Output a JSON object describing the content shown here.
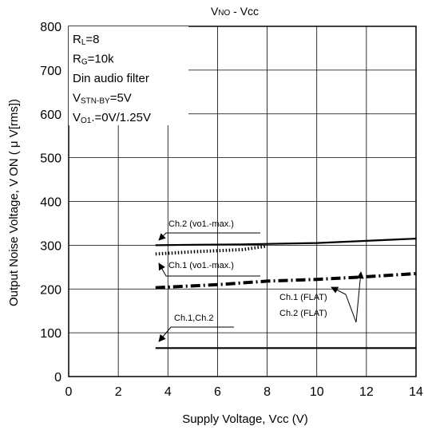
{
  "chart_data": {
    "type": "line",
    "title": {
      "main": "V",
      "sub": "NO",
      "rest": " - Vcc"
    },
    "xlabel": "Supply Voltage, Vcc (V)",
    "ylabel": "Output Noise Voltage, V ON ( μ V[rms])",
    "xlim": [
      0,
      14
    ],
    "ylim": [
      0,
      800
    ],
    "xticks": [
      "0",
      "2",
      "4",
      "6",
      "8",
      "10",
      "12",
      "14"
    ],
    "yticks": [
      "0",
      "100",
      "200",
      "300",
      "400",
      "500",
      "600",
      "700",
      "800"
    ],
    "grid": true,
    "conditions": [
      {
        "main": "R",
        "sub": "L",
        "rest": "=8"
      },
      {
        "main": "R",
        "sub": "G",
        "rest": "=10k"
      },
      {
        "main": "Din audio filter",
        "sub": "",
        "rest": ""
      },
      {
        "main": "V",
        "sub": "STN-BY",
        "rest": "=5V"
      },
      {
        "main": "V",
        "sub": "O1",
        "rest": ".=0V/1.25V"
      }
    ],
    "series": [
      {
        "name": "Ch.2 (vo1.-max.)",
        "style": "solid",
        "color": "#000000",
        "x": [
          3.5,
          5,
          7,
          8,
          10,
          12,
          14
        ],
        "y": [
          300,
          301,
          302,
          303,
          305,
          310,
          315
        ]
      },
      {
        "name": "Ch.1 (vo1.-max.)",
        "style": "dotted",
        "color": "#000000",
        "x": [
          3.5,
          5,
          7,
          8
        ],
        "y": [
          280,
          285,
          290,
          298
        ]
      },
      {
        "name": "Ch.1 (FLAT)",
        "style": "dashdot",
        "color": "#000000",
        "x": [
          3.5,
          6,
          8,
          10,
          12,
          14
        ],
        "y": [
          203,
          210,
          218,
          222,
          228,
          235
        ]
      },
      {
        "name": "Ch.1,Ch.2",
        "style": "solid",
        "color": "#000000",
        "x": [
          3.5,
          14
        ],
        "y": [
          65,
          65
        ]
      }
    ],
    "annotations": [
      {
        "text": "Ch.2 (vo1.-max.)"
      },
      {
        "text": "Ch.1 (vo1.-max.)"
      },
      {
        "text": "Ch.1 (FLAT)"
      },
      {
        "text": "Ch.2 (FLAT)"
      },
      {
        "text": "Ch.1,Ch.2"
      }
    ]
  }
}
